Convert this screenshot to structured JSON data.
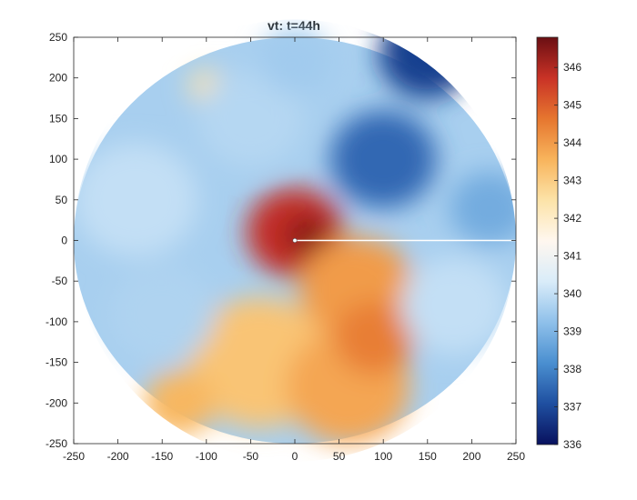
{
  "chart_data": {
    "type": "heatmap",
    "title": "vt: t=44h",
    "xlabel": "",
    "ylabel": "",
    "xlim": [
      -250,
      250
    ],
    "ylim": [
      -250,
      250
    ],
    "x_ticks": [
      -250,
      -200,
      -150,
      -100,
      -50,
      0,
      50,
      100,
      150,
      200,
      250
    ],
    "y_ticks": [
      -250,
      -200,
      -150,
      -100,
      -50,
      0,
      50,
      100,
      150,
      200,
      250
    ],
    "domain_radius": 250,
    "colorbar": {
      "min": 336,
      "max": 346.8,
      "ticks": [
        336,
        337,
        338,
        339,
        340,
        341,
        342,
        343,
        344,
        345,
        346
      ],
      "colors": [
        "#08115e",
        "#1f4fa0",
        "#4a8fd0",
        "#8fc0ea",
        "#d9ecf9",
        "#fff7ef",
        "#fce3a8",
        "#f8b45c",
        "#e6762f",
        "#c93226",
        "#6b0f13"
      ]
    },
    "features": [
      {
        "x": 0,
        "y": 10,
        "radius": 55,
        "value": 345.8
      },
      {
        "x": 15,
        "y": 5,
        "radius": 25,
        "value": 346.5
      },
      {
        "x": 70,
        "y": -60,
        "radius": 65,
        "value": 344.0
      },
      {
        "x": -40,
        "y": -150,
        "radius": 80,
        "value": 343.2
      },
      {
        "x": 60,
        "y": -180,
        "radius": 70,
        "value": 343.8
      },
      {
        "x": 90,
        "y": -120,
        "radius": 45,
        "value": 344.5
      },
      {
        "x": -130,
        "y": -200,
        "radius": 40,
        "value": 343.5
      },
      {
        "x": -100,
        "y": 190,
        "radius": 20,
        "value": 342.5
      },
      {
        "x": 100,
        "y": 100,
        "radius": 60,
        "value": 337.5
      },
      {
        "x": 150,
        "y": 230,
        "radius": 55,
        "value": 336.8
      },
      {
        "x": 220,
        "y": 40,
        "radius": 45,
        "value": 338.8
      },
      {
        "x": -180,
        "y": 50,
        "radius": 70,
        "value": 340.0
      },
      {
        "x": -50,
        "y": 150,
        "radius": 60,
        "value": 339.8
      },
      {
        "x": 180,
        "y": -80,
        "radius": 60,
        "value": 340.0
      },
      {
        "x": -150,
        "y": -90,
        "radius": 60,
        "value": 339.7
      },
      {
        "x": 0,
        "y": 220,
        "radius": 40,
        "value": 339.5
      }
    ],
    "center_point": {
      "x": 0,
      "y": 0
    },
    "radial_line": {
      "x_start": 0,
      "x_end": 250,
      "y": 0
    }
  }
}
